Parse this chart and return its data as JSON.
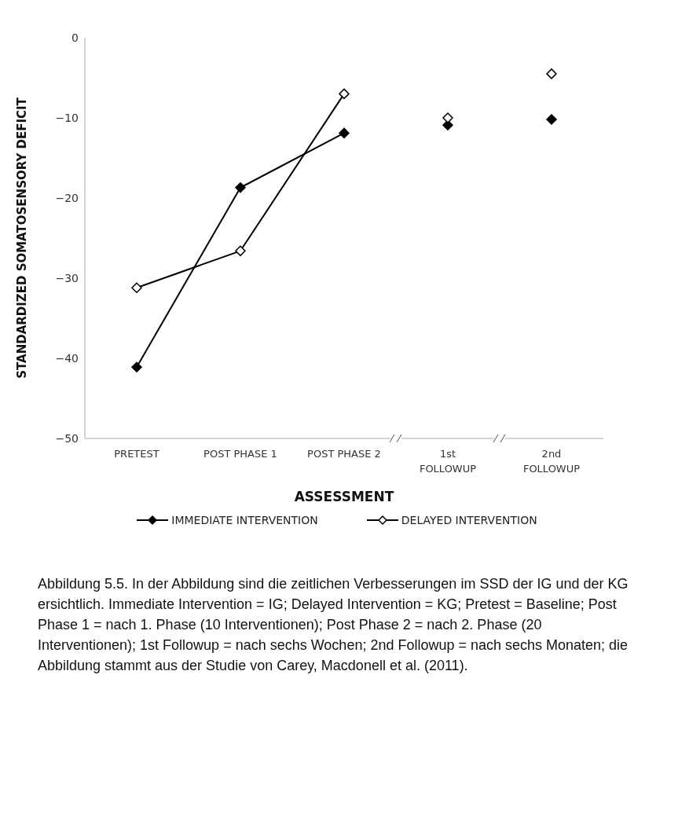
{
  "chart_data": {
    "type": "line",
    "xlabel": "ASSESSMENT",
    "ylabel": "STANDARDIZED SOMATOSENSORY DEFICIT",
    "categories": [
      "PRETEST",
      "POST PHASE 1",
      "POST PHASE 2",
      "1st\nFOLLOWUP",
      "2nd\nFOLLOWUP"
    ],
    "series": [
      {
        "name": "IMMEDIATE INTERVENTION",
        "color": "#000000",
        "colors": [
          "#000000",
          "#000000",
          "#000000",
          "#000000",
          "#000000"
        ],
        "values": [
          -41.1,
          -18.7,
          -11.9,
          null,
          null
        ]
      },
      {
        "name": "DELAYED INTERVENTION",
        "color": "#000000",
        "colors": [
          "#ffffff",
          "#ffffff",
          "#ffffff",
          "#ffffff",
          "#ffffff"
        ],
        "values": [
          -31.2,
          -26.6,
          -7.0,
          null,
          null
        ]
      },
      {
        "type": "scatter",
        "color": "#000000",
        "colors": [
          "#000000",
          "#000000"
        ],
        "x": [
          "1st\nFOLLOWUP",
          "2nd\nFOLLOWUP"
        ],
        "values": [
          -10.9,
          -10.2
        ]
      },
      {
        "type": "scatter",
        "color": "#000000",
        "colors": [
          "#ffffff",
          "#ffffff"
        ],
        "x": [
          "1st\nFOLLOWUP",
          "2nd\nFOLLOWUP"
        ],
        "values": [
          -10.0,
          -4.5
        ]
      }
    ],
    "ylim": [
      -50,
      0
    ],
    "yticks": [
      0,
      -10,
      -20,
      -30,
      -40,
      -50
    ],
    "marker": "diamond",
    "line_style": "solid",
    "legend": "bottom",
    "annotations": [
      "Abbildung 5.5. In der Abbildung sind die zeitlichen Verbesserungen im SSD der IG und der KG ersichtlich. Immediate Intervention = IG; Delayed Intervention = KG; Pretest = Baseline; Post Phase 1 = nach 1. Phase (10 Interventionen); Post Phase 2 = nach 2. Phase (20 Interventionen); 1st Followup = nach sechs Wochen; 2nd Followup = nach sechs Monaten; die Abbildung stammt aus der Studie von Carey, Macdonell et al. (2011)."
    ]
  }
}
